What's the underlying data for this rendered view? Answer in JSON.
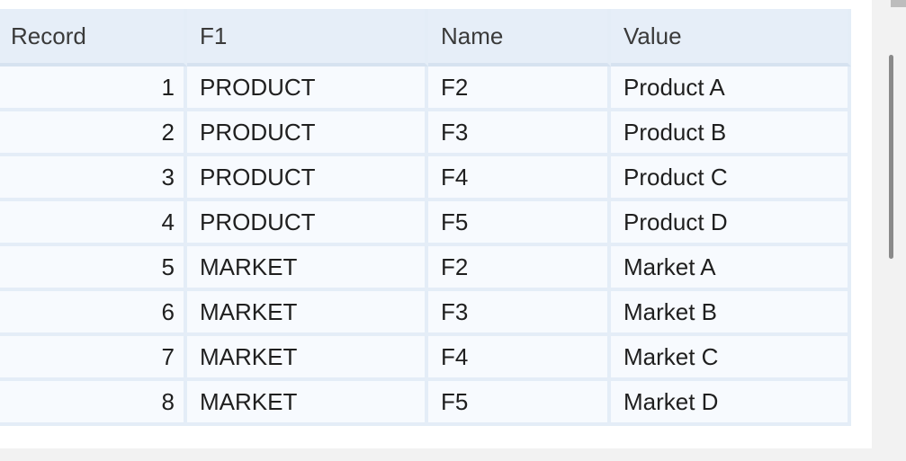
{
  "grid": {
    "columns": [
      "Record",
      "F1",
      "Name",
      "Value"
    ],
    "rows": [
      {
        "record": "1",
        "f1": "PRODUCT",
        "name": "F2",
        "value": "Product A"
      },
      {
        "record": "2",
        "f1": "PRODUCT",
        "name": "F3",
        "value": "Product B"
      },
      {
        "record": "3",
        "f1": "PRODUCT",
        "name": "F4",
        "value": "Product C"
      },
      {
        "record": "4",
        "f1": "PRODUCT",
        "name": "F5",
        "value": "Product D"
      },
      {
        "record": "5",
        "f1": "MARKET",
        "name": "F2",
        "value": "Market A"
      },
      {
        "record": "6",
        "f1": "MARKET",
        "name": "F3",
        "value": "Market B"
      },
      {
        "record": "7",
        "f1": "MARKET",
        "name": "F4",
        "value": "Market C"
      },
      {
        "record": "8",
        "f1": "MARKET",
        "name": "F5",
        "value": "Market D"
      }
    ]
  },
  "colors": {
    "header_bg": "#e6eef8",
    "cell_bg": "#f7fafe",
    "gridline": "#e4edf7",
    "scroll_thumb": "#8a8a8a"
  }
}
